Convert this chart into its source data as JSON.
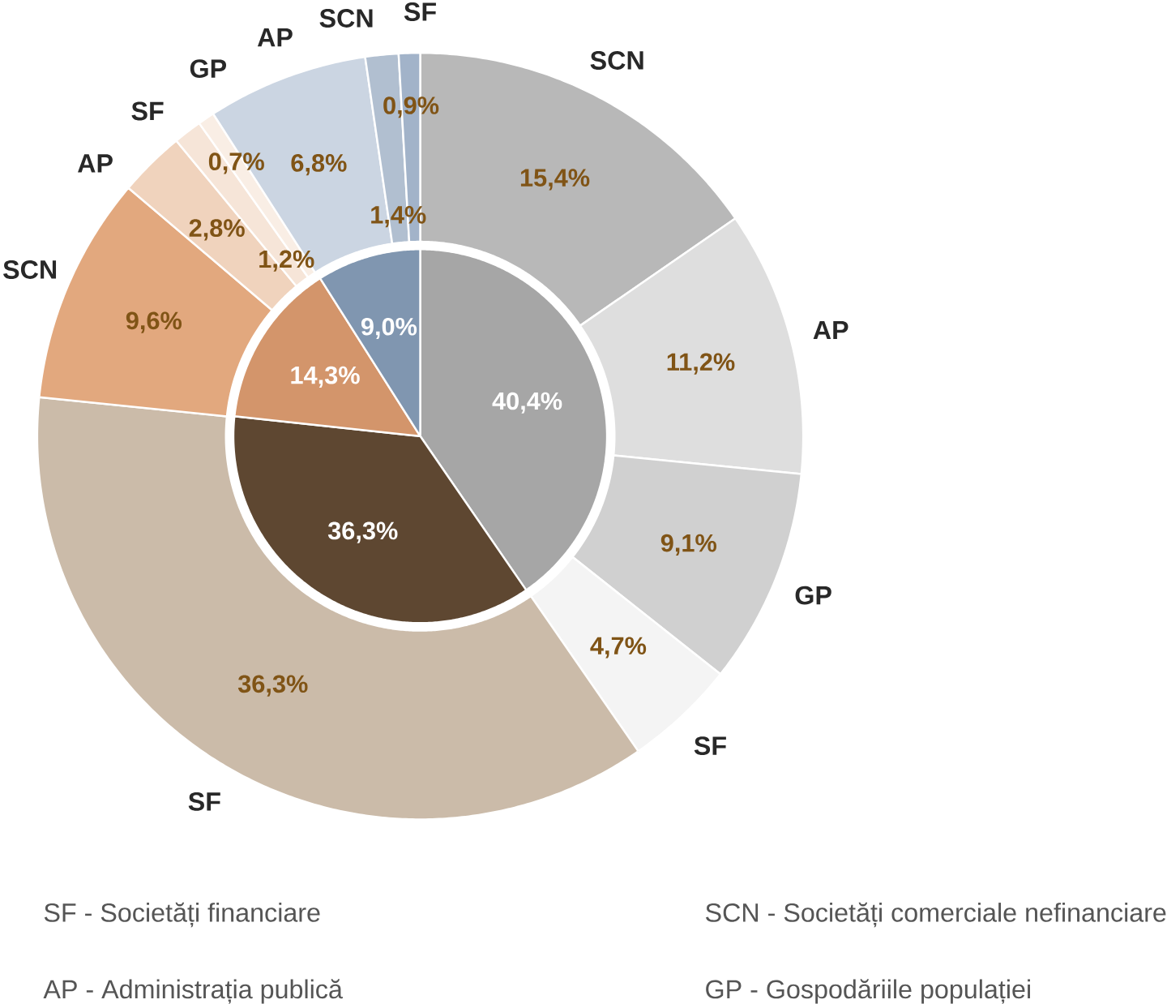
{
  "chart_data": [
    {
      "type": "pie",
      "categories": [
        null,
        null,
        null,
        null
      ],
      "values": [
        40.4,
        36.3,
        14.3,
        9.0
      ],
      "colors": [
        "#a6a6a6",
        "#5e4731",
        "#d3956b",
        "#8096b0"
      ],
      "value_labels": [
        "40,4%",
        "36,3%",
        "14,3%",
        "9,0%"
      ]
    },
    {
      "type": "donut",
      "categories": [
        "SCN",
        "AP",
        "GP",
        "SF",
        "SF",
        "SCN",
        "AP",
        "SF",
        "GP",
        "AP",
        "SCN",
        "SF"
      ],
      "values": [
        15.4,
        11.2,
        9.1,
        4.7,
        36.3,
        9.6,
        2.8,
        1.2,
        0.7,
        6.8,
        1.4,
        0.9
      ],
      "colors": [
        "#b8b8b8",
        "#dedede",
        "#d0d0d0",
        "#f4f4f4",
        "#cbbba9",
        "#e2a87e",
        "#f0d3bd",
        "#f6e5d8",
        "#f9eee5",
        "#cbd5e2",
        "#b1bfd0",
        "#a2b3c9"
      ],
      "value_labels": [
        "15,4%",
        "11,2%",
        "9,1%",
        "4,7%",
        "36,3%",
        "9,6%",
        "2,8%",
        "1,2%",
        "0,7%",
        "6,8%",
        "1,4%",
        "0,9%"
      ],
      "annotations": [
        "SF - Societăți financiare",
        "SCN - Societăți comerciale nefinanciare",
        "AP - Administrația publică",
        "GP - Gospodăriile populației"
      ]
    }
  ]
}
